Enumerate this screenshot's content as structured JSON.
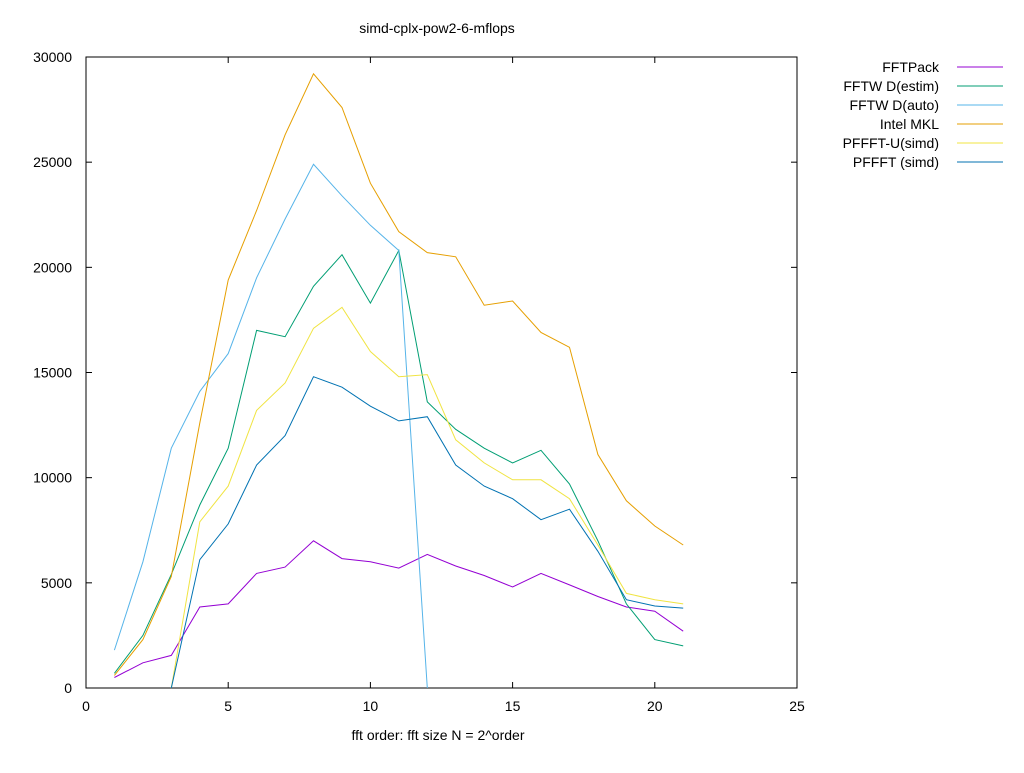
{
  "chart_data": {
    "type": "line",
    "title": "simd-cplx-pow2-6-mflops",
    "xlabel": "fft order: fft size N = 2^order",
    "ylabel": "",
    "xlim": [
      0,
      25
    ],
    "ylim": [
      0,
      30000
    ],
    "xticks": [
      0,
      5,
      10,
      15,
      20,
      25
    ],
    "yticks": [
      0,
      5000,
      10000,
      15000,
      20000,
      25000,
      30000
    ],
    "grid": false,
    "legend_position": "outside-top-right",
    "series": [
      {
        "name": "FFTPack",
        "color": "#9400d3",
        "x": [
          1,
          2,
          3,
          4,
          5,
          6,
          7,
          8,
          9,
          10,
          11,
          12,
          13,
          14,
          15,
          16,
          17,
          18,
          19,
          20,
          21
        ],
        "y": [
          500,
          1200,
          1550,
          3850,
          4000,
          5450,
          5750,
          7000,
          6150,
          6000,
          5700,
          6350,
          5800,
          5350,
          4800,
          5450,
          4900,
          4350,
          3850,
          3650,
          2700
        ]
      },
      {
        "name": "FFTW D(estim)",
        "color": "#009e73",
        "x": [
          1,
          2,
          3,
          4,
          5,
          6,
          7,
          8,
          9,
          10,
          11,
          12,
          13,
          14,
          15,
          16,
          17,
          18,
          19,
          20,
          21
        ],
        "y": [
          700,
          2500,
          5400,
          8700,
          11400,
          17000,
          16700,
          19100,
          20600,
          18300,
          20800,
          13600,
          12300,
          11400,
          10700,
          11300,
          9700,
          7000,
          4000,
          2300,
          2000
        ]
      },
      {
        "name": "FFTW D(auto)",
        "color": "#56b4e9",
        "x": [
          1,
          2,
          3,
          4,
          5,
          6,
          7,
          8,
          9,
          10,
          11,
          12
        ],
        "y": [
          1800,
          6000,
          11400,
          14100,
          15900,
          19500,
          22300,
          24900,
          23400,
          22000,
          20800,
          0
        ]
      },
      {
        "name": "Intel MKL",
        "color": "#e69f00",
        "x": [
          1,
          2,
          3,
          4,
          5,
          6,
          7,
          8,
          9,
          10,
          11,
          12,
          13,
          14,
          15,
          16,
          17,
          18,
          19,
          20,
          21
        ],
        "y": [
          600,
          2300,
          5300,
          12600,
          19400,
          22700,
          26300,
          29200,
          27600,
          24000,
          21700,
          20700,
          20500,
          18200,
          18400,
          16900,
          16200,
          11100,
          8900,
          7700,
          6800
        ]
      },
      {
        "name": "PFFFT-U(simd)",
        "color": "#f0e442",
        "x": [
          3,
          4,
          5,
          6,
          7,
          8,
          9,
          10,
          11,
          12,
          13,
          14,
          15,
          16,
          17,
          18,
          19,
          20,
          21
        ],
        "y": [
          0,
          7900,
          9600,
          13200,
          14500,
          17100,
          18100,
          16000,
          14800,
          14900,
          11800,
          10700,
          9900,
          9900,
          9000,
          6800,
          4500,
          4200,
          4000
        ]
      },
      {
        "name": "PFFFT (simd)",
        "color": "#0072b2",
        "x": [
          3,
          4,
          5,
          6,
          7,
          8,
          9,
          10,
          11,
          12,
          13,
          14,
          15,
          16,
          17,
          18,
          19,
          20,
          21
        ],
        "y": [
          0,
          6100,
          7800,
          10600,
          12000,
          14800,
          14300,
          13400,
          12700,
          12900,
          10600,
          9600,
          9000,
          8000,
          8500,
          6500,
          4200,
          3900,
          3800
        ]
      }
    ]
  }
}
